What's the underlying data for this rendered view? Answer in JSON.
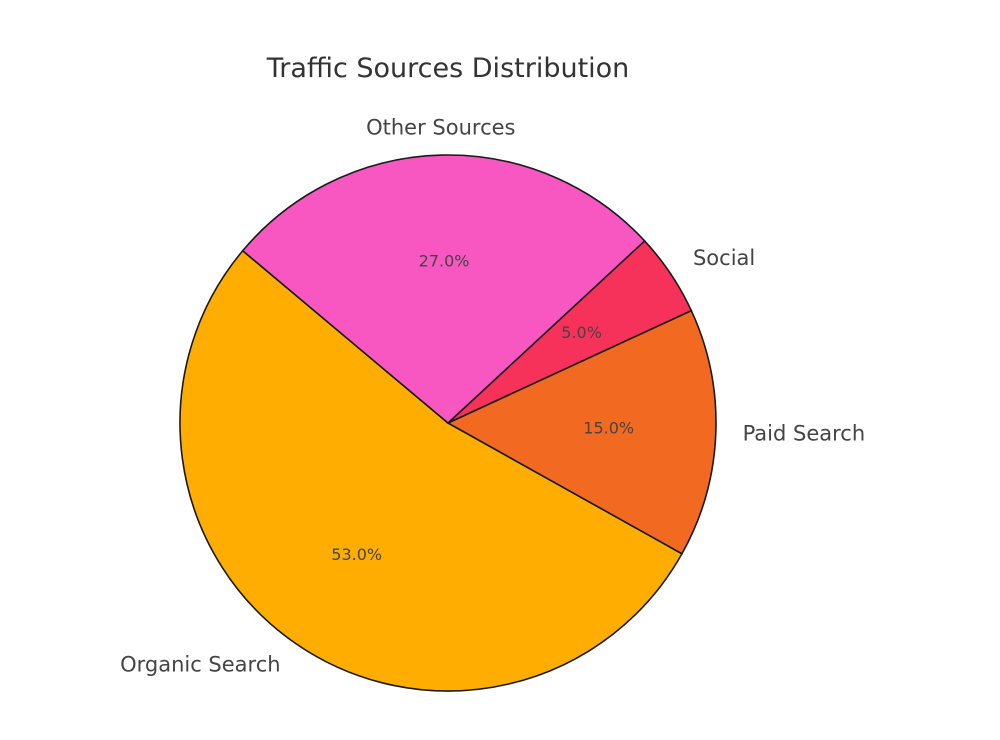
{
  "chart_data": {
    "type": "pie",
    "title": "Traffic Sources Distribution",
    "slices": [
      {
        "label": "Organic Search",
        "value": 53.0,
        "pct_label": "53.0%",
        "color": "#FFAD00"
      },
      {
        "label": "Paid Search",
        "value": 15.0,
        "pct_label": "15.0%",
        "color": "#F26A22"
      },
      {
        "label": "Social",
        "value": 5.0,
        "pct_label": "5.0%",
        "color": "#F7325A"
      },
      {
        "label": "Other Sources",
        "value": 27.0,
        "pct_label": "27.0%",
        "color": "#F857C2"
      }
    ],
    "start_angle_deg": 140,
    "direction": "counterclockwise",
    "legend": "none"
  }
}
